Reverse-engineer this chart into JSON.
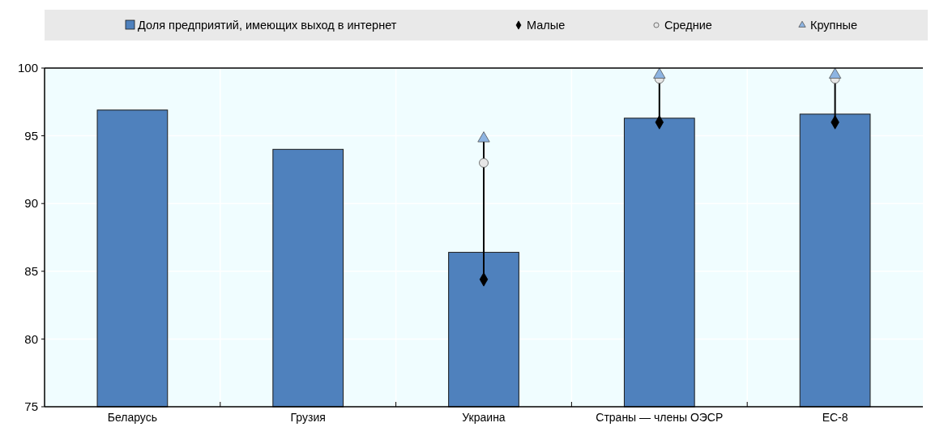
{
  "chart_data": {
    "type": "bar",
    "categories": [
      "Беларусь",
      "Грузия",
      "Украина",
      "Страны — члены ОЭСР",
      "ЕС-8"
    ],
    "series": [
      {
        "name": "Доля предприятий, имеющих выход в интернет",
        "color": "#4f81bd",
        "values": [
          96.9,
          94.0,
          86.4,
          96.3,
          96.6
        ]
      },
      {
        "name": "Малые",
        "type": "scatter",
        "marker": "diamond",
        "color": "#000000",
        "x": [
          "Беларусь",
          "Грузия",
          "Украина",
          "Страны — члены ОЭСР",
          "ЕС-8"
        ],
        "values": [
          null,
          null,
          84.4,
          96.0,
          96.0
        ]
      },
      {
        "name": "Средние",
        "type": "scatter",
        "marker": "circle",
        "color": "#e6e6e6",
        "x": [
          "Беларусь",
          "Грузия",
          "Украина",
          "Страны — члены ОЭСР",
          "ЕС-8"
        ],
        "values": [
          null,
          null,
          93.0,
          99.2,
          99.2
        ]
      },
      {
        "name": "Крупные",
        "type": "scatter",
        "marker": "triangle",
        "color": "#8db4e2",
        "x": [
          "Беларусь",
          "Грузия",
          "Украина",
          "Страны — члены ОЭСР",
          "ЕС-8"
        ],
        "values": [
          null,
          null,
          94.8,
          99.5,
          99.5
        ]
      }
    ],
    "ylim": [
      75,
      100
    ],
    "yticks": [
      75,
      80,
      85,
      90,
      95,
      100
    ],
    "grid": true,
    "legend": "top"
  }
}
